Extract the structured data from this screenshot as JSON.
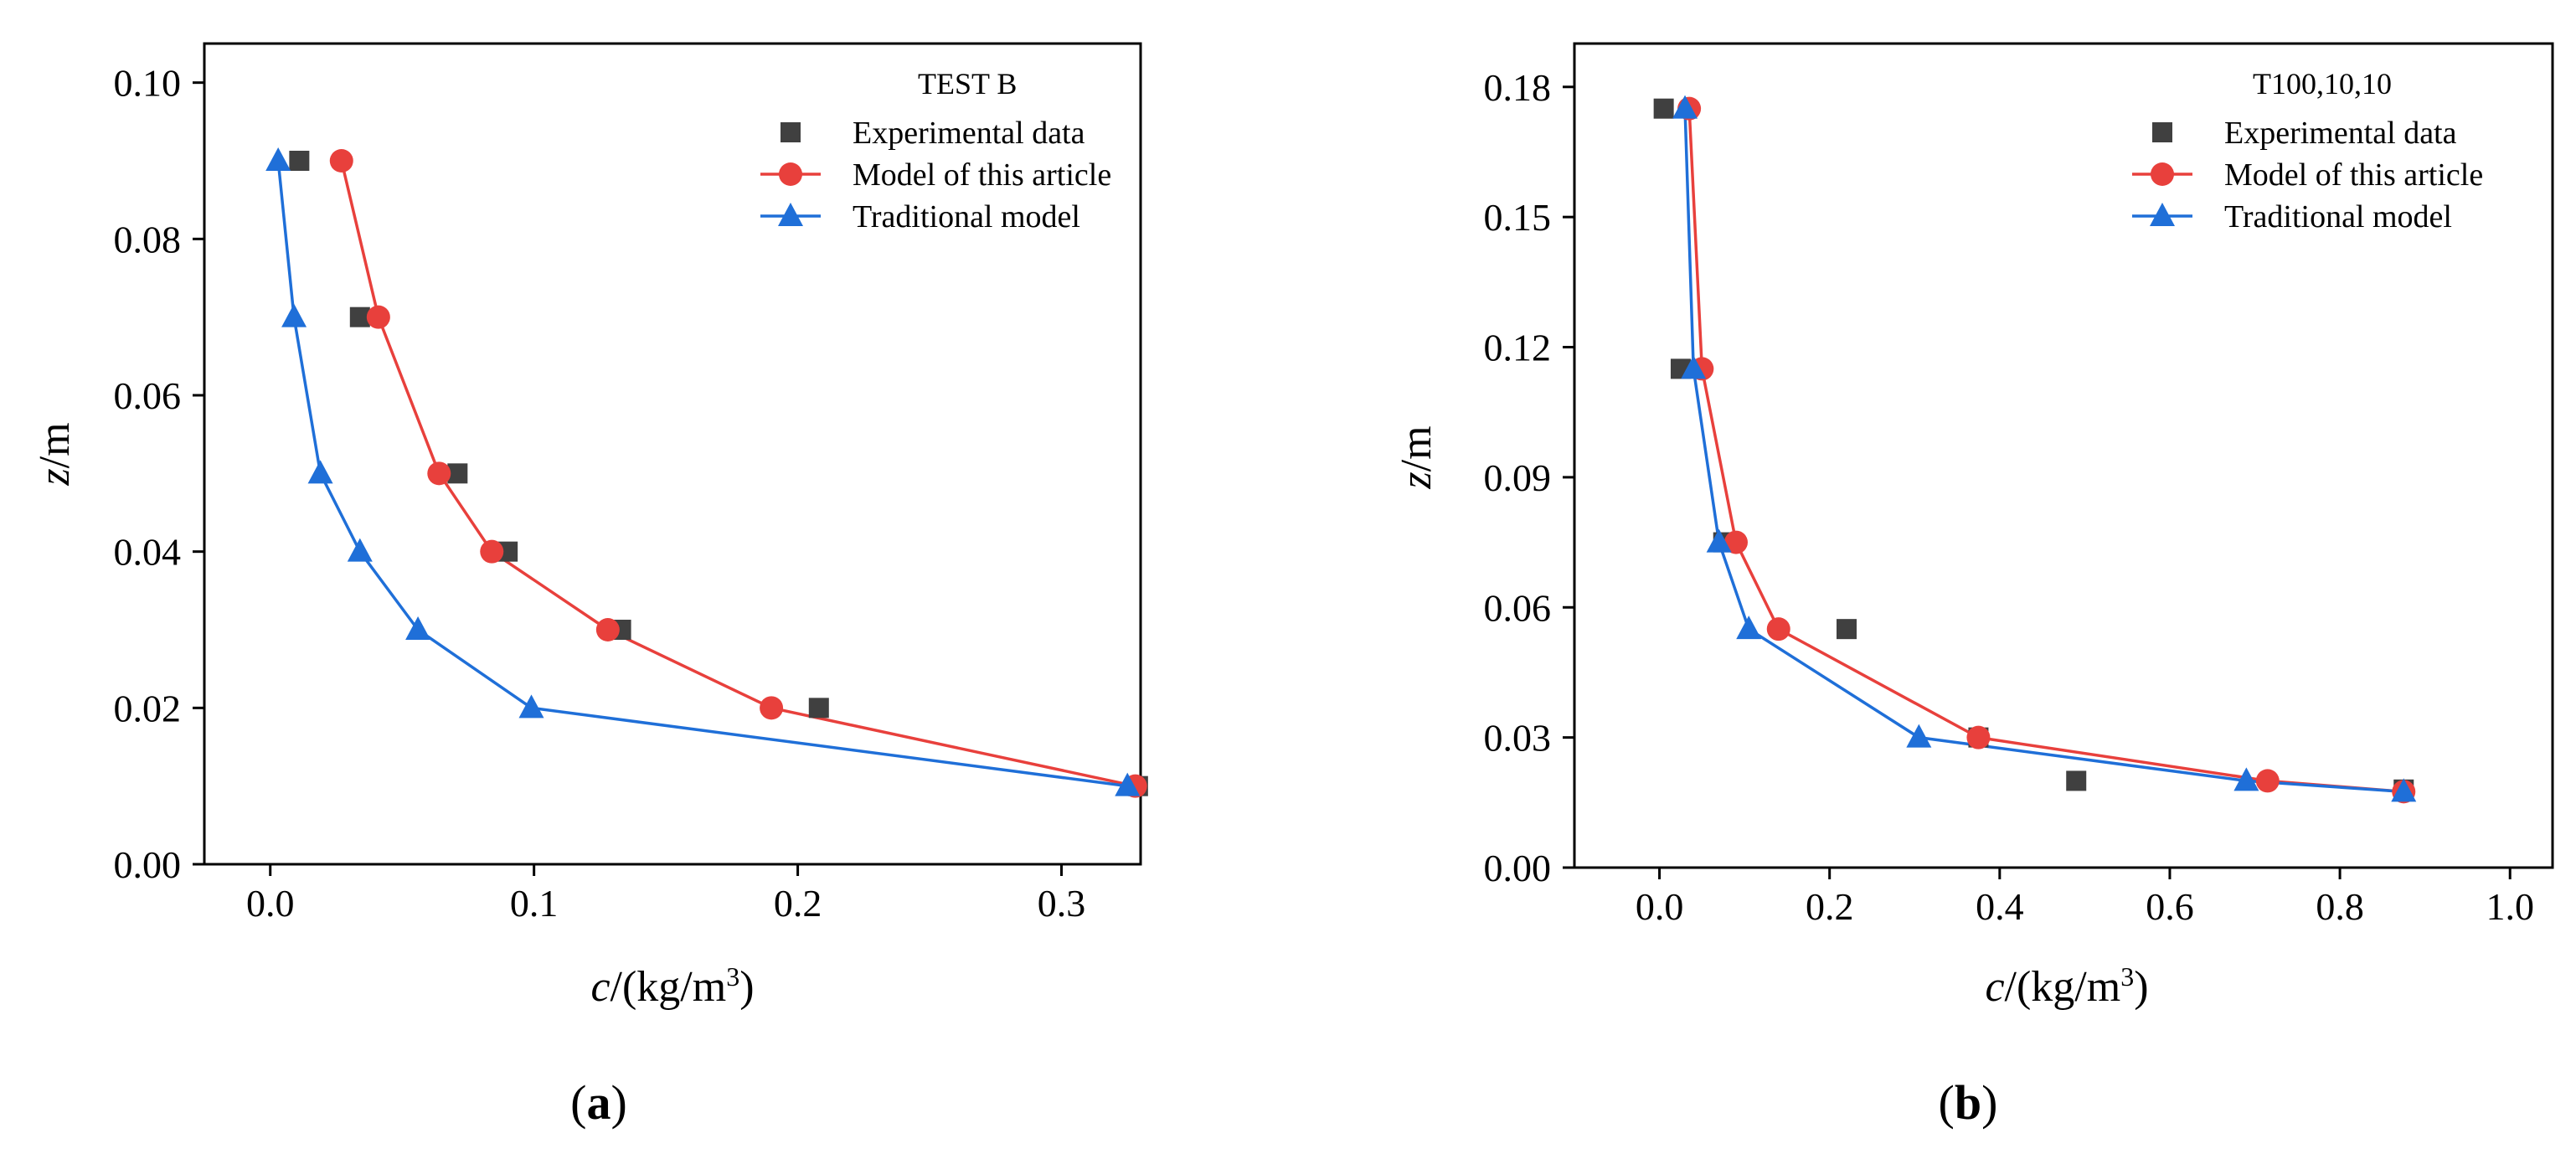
{
  "chart_data": [
    {
      "panel_label": "a",
      "type": "line",
      "title": "TEST B",
      "xlabel": "c",
      "xlabel_units": "/(kg/m",
      "xlabel_sup": "3",
      "xlabel_close": ")",
      "ylabel": "z",
      "ylabel_units": "/m",
      "xlim": [
        -0.025,
        0.33
      ],
      "ylim": [
        0.0,
        0.105
      ],
      "xticks": [
        "0.0",
        "0.1",
        "0.2",
        "0.3"
      ],
      "xtick_values": [
        0.0,
        0.1,
        0.2,
        0.3
      ],
      "yticks": [
        "0.00",
        "0.02",
        "0.04",
        "0.06",
        "0.08",
        "0.10"
      ],
      "ytick_values": [
        0.0,
        0.02,
        0.04,
        0.06,
        0.08,
        0.1
      ],
      "legend_position": "top-right",
      "series": [
        {
          "name": "Experimental data",
          "marker": "square",
          "line": false,
          "color": "#404040",
          "x": [
            0.011,
            0.034,
            0.071,
            0.09,
            0.133,
            0.208,
            0.329
          ],
          "y": [
            0.09,
            0.07,
            0.05,
            0.04,
            0.03,
            0.02,
            0.01
          ]
        },
        {
          "name": "Model of this article",
          "marker": "circle",
          "line": true,
          "color": "#e8403c",
          "x": [
            0.027,
            0.041,
            0.064,
            0.084,
            0.128,
            0.19,
            0.328
          ],
          "y": [
            0.09,
            0.07,
            0.05,
            0.04,
            0.03,
            0.02,
            0.01
          ]
        },
        {
          "name": "Traditional model",
          "marker": "triangle",
          "line": true,
          "color": "#1f6fd8",
          "x": [
            0.003,
            0.009,
            0.019,
            0.034,
            0.056,
            0.099,
            0.325
          ],
          "y": [
            0.09,
            0.07,
            0.05,
            0.04,
            0.03,
            0.02,
            0.01
          ]
        }
      ]
    },
    {
      "panel_label": "b",
      "type": "line",
      "title": "T100,10,10",
      "xlabel": "c",
      "xlabel_units": "/(kg/m",
      "xlabel_sup": "3",
      "xlabel_close": ")",
      "ylabel": "z",
      "ylabel_units": "/m",
      "xlim": [
        -0.1,
        1.05
      ],
      "ylim": [
        0.0,
        0.19
      ],
      "xticks": [
        "0.0",
        "0.2",
        "0.4",
        "0.6",
        "0.8",
        "1.0"
      ],
      "xtick_values": [
        0.0,
        0.2,
        0.4,
        0.6,
        0.8,
        1.0
      ],
      "yticks": [
        "0.00",
        "0.03",
        "0.06",
        "0.09",
        "0.12",
        "0.15",
        "0.18"
      ],
      "ytick_values": [
        0.0,
        0.03,
        0.06,
        0.09,
        0.12,
        0.15,
        0.18
      ],
      "legend_position": "top-right",
      "series": [
        {
          "name": "Experimental data",
          "marker": "square",
          "line": false,
          "color": "#404040",
          "x": [
            0.005,
            0.025,
            0.075,
            0.22,
            0.375,
            0.49,
            0.875
          ],
          "y": [
            0.175,
            0.115,
            0.075,
            0.055,
            0.03,
            0.02,
            0.018
          ]
        },
        {
          "name": "Model of this article",
          "marker": "circle",
          "line": true,
          "color": "#e8403c",
          "x": [
            0.035,
            0.05,
            0.09,
            0.14,
            0.375,
            0.715,
            0.875
          ],
          "y": [
            0.175,
            0.115,
            0.075,
            0.055,
            0.03,
            0.02,
            0.0175
          ]
        },
        {
          "name": "Traditional model",
          "marker": "triangle",
          "line": true,
          "color": "#1f6fd8",
          "x": [
            0.03,
            0.04,
            0.07,
            0.105,
            0.305,
            0.69,
            0.875
          ],
          "y": [
            0.175,
            0.115,
            0.075,
            0.055,
            0.03,
            0.02,
            0.0175
          ]
        }
      ]
    }
  ]
}
